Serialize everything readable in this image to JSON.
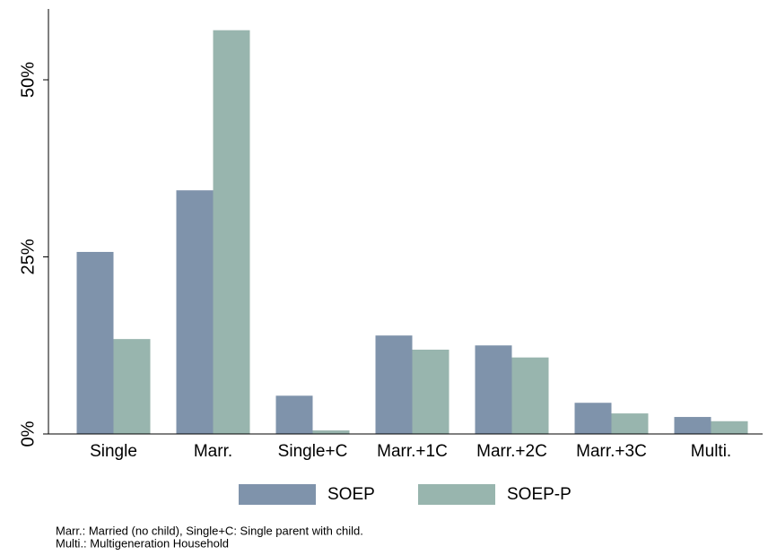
{
  "chart_data": {
    "type": "bar",
    "categories": [
      "Single",
      "Marr.",
      "Single+C",
      "Marr.+1C",
      "Marr.+2C",
      "Marr.+3C",
      "Multi."
    ],
    "series": [
      {
        "name": "SOEP",
        "color": "#7f93ab",
        "values": [
          25.7,
          34.4,
          5.4,
          13.9,
          12.5,
          4.4,
          2.4
        ]
      },
      {
        "name": "SOEP-P",
        "color": "#98b5ae",
        "values": [
          13.4,
          57.0,
          0.5,
          11.9,
          10.8,
          2.9,
          1.8
        ]
      }
    ],
    "ylim": [
      0,
      60
    ],
    "yticks": [
      {
        "value": 0,
        "label": "0%"
      },
      {
        "value": 25,
        "label": "25%"
      },
      {
        "value": 50,
        "label": "50%"
      }
    ],
    "grid": false,
    "legend": "bottom",
    "notes": [
      "Marr.: Married (no child), Single+C: Single parent with child.",
      "Multi.: Multigeneration Household"
    ]
  }
}
